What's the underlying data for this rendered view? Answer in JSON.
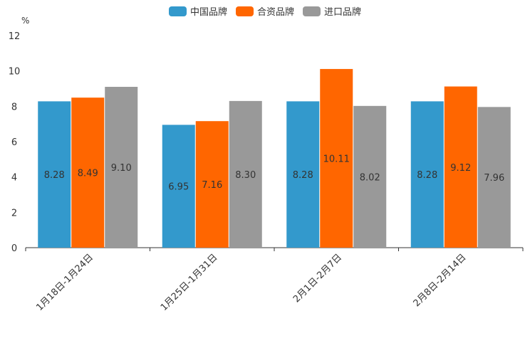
{
  "chart_data": {
    "type": "bar",
    "unit_label": "%",
    "ylim": [
      0,
      12
    ],
    "yticks": [
      "0",
      "2",
      "4",
      "6",
      "8",
      "10",
      "12"
    ],
    "categories": [
      "1月18日-1月24日",
      "1月25日-1月31日",
      "2月1日-2月7日",
      "2月8日-2月14日"
    ],
    "series": [
      {
        "name": "中国品牌",
        "color": "#3399cc",
        "values": [
          8.28,
          6.95,
          8.28,
          8.28
        ],
        "labels": [
          "8.28",
          "6.95",
          "8.28",
          "8.28"
        ]
      },
      {
        "name": "合资品牌",
        "color": "#ff6600",
        "values": [
          8.49,
          7.16,
          10.11,
          9.12
        ],
        "labels": [
          "8.49",
          "7.16",
          "10.11",
          "9.12"
        ]
      },
      {
        "name": "进口品牌",
        "color": "#999999",
        "values": [
          9.1,
          8.3,
          8.02,
          7.96
        ],
        "labels": [
          "9.10",
          "8.30",
          "8.02",
          "7.96"
        ]
      }
    ],
    "legend_position": "top-center",
    "grid": false
  }
}
